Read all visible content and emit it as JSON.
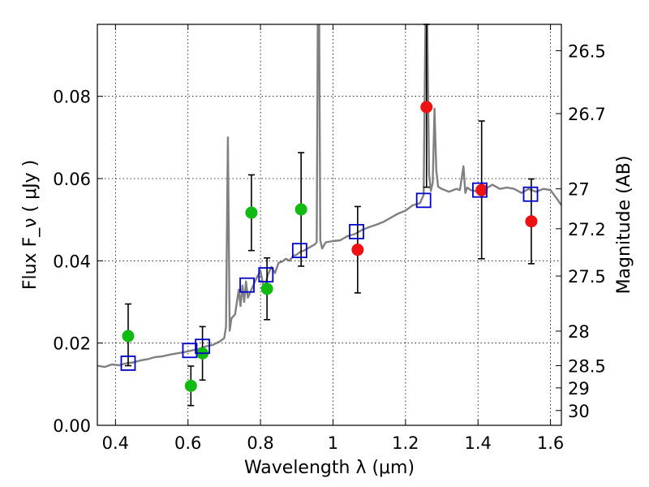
{
  "chart_data": {
    "type": "scatter",
    "xlabel": "Wavelength  λ (μm)",
    "ylabel": "Flux  F_ν  ( μJy )",
    "ylabel_right": "Magnitude (AB)",
    "xlim": [
      0.35,
      1.63
    ],
    "ylim": [
      0.0,
      0.0975
    ],
    "grid": true,
    "x_ticks": [
      0.4,
      0.6,
      0.8,
      1.0,
      1.2,
      1.4,
      1.6
    ],
    "x_tick_labels": [
      "0.4",
      "0.6",
      "0.8",
      "1",
      "1.2",
      "1.4",
      "1.6"
    ],
    "y_ticks": [
      0.0,
      0.02,
      0.04,
      0.06,
      0.08
    ],
    "y_tick_labels": [
      "0.00",
      "0.02",
      "0.04",
      "0.06",
      "0.08"
    ],
    "right_ticks": [
      {
        "label": "26.5",
        "flux": 0.0911
      },
      {
        "label": "26.7",
        "flux": 0.0758
      },
      {
        "label": "27",
        "flux": 0.0575
      },
      {
        "label": "27.2",
        "flux": 0.0478
      },
      {
        "label": "27.5",
        "flux": 0.0363
      },
      {
        "label": "28",
        "flux": 0.0229
      },
      {
        "label": "28.5",
        "flux": 0.0145
      },
      {
        "label": "29",
        "flux": 0.0091
      },
      {
        "label": "30",
        "flux": 0.0036
      }
    ],
    "model_spectrum": {
      "color": "#808080",
      "x": [
        0.35,
        0.37,
        0.39,
        0.41,
        0.43,
        0.45,
        0.47,
        0.49,
        0.51,
        0.53,
        0.55,
        0.57,
        0.59,
        0.61,
        0.63,
        0.65,
        0.67,
        0.69,
        0.7,
        0.705,
        0.71,
        0.715,
        0.72,
        0.73,
        0.74,
        0.745,
        0.75,
        0.755,
        0.76,
        0.765,
        0.77,
        0.78,
        0.79,
        0.8,
        0.81,
        0.82,
        0.83,
        0.84,
        0.85,
        0.86,
        0.87,
        0.88,
        0.89,
        0.9,
        0.91,
        0.92,
        0.93,
        0.94,
        0.95,
        0.955,
        0.958,
        0.962,
        0.965,
        0.97,
        0.98,
        1.0,
        1.02,
        1.04,
        1.06,
        1.08,
        1.1,
        1.12,
        1.14,
        1.16,
        1.18,
        1.2,
        1.22,
        1.24,
        1.25,
        1.255,
        1.26,
        1.265,
        1.27,
        1.275,
        1.28,
        1.285,
        1.29,
        1.3,
        1.32,
        1.34,
        1.35,
        1.36,
        1.365,
        1.37,
        1.38,
        1.4,
        1.42,
        1.44,
        1.46,
        1.48,
        1.5,
        1.52,
        1.54,
        1.56,
        1.58,
        1.6,
        1.62,
        1.63
      ],
      "y": [
        0.0145,
        0.0142,
        0.0148,
        0.0146,
        0.0151,
        0.0153,
        0.0158,
        0.0161,
        0.0166,
        0.0168,
        0.0172,
        0.0175,
        0.0178,
        0.0182,
        0.0186,
        0.0192,
        0.0196,
        0.0205,
        0.0212,
        0.024,
        0.07,
        0.023,
        0.026,
        0.027,
        0.033,
        0.029,
        0.034,
        0.03,
        0.035,
        0.031,
        0.032,
        0.034,
        0.036,
        0.0375,
        0.033,
        0.0365,
        0.0385,
        0.037,
        0.0395,
        0.0398,
        0.0405,
        0.04,
        0.0412,
        0.0415,
        0.0422,
        0.0425,
        0.043,
        0.0435,
        0.044,
        0.0445,
        0.0975,
        0.0975,
        0.045,
        0.043,
        0.0445,
        0.0448,
        0.045,
        0.046,
        0.0465,
        0.0475,
        0.0482,
        0.0488,
        0.0495,
        0.0505,
        0.0515,
        0.0522,
        0.0535,
        0.054,
        0.056,
        0.0975,
        0.0975,
        0.061,
        0.057,
        0.059,
        0.077,
        0.062,
        0.058,
        0.0575,
        0.0568,
        0.0575,
        0.0572,
        0.063,
        0.0565,
        0.0578,
        0.0572,
        0.0568,
        0.0575,
        0.0585,
        0.0575,
        0.0578,
        0.0575,
        0.0565,
        0.0575,
        0.0568,
        0.0575,
        0.0572,
        0.0548,
        0.0535
      ]
    },
    "model_points": {
      "marker": "open-square",
      "color": "#0000cc",
      "x": [
        0.435,
        0.605,
        0.64,
        0.763,
        0.815,
        0.908,
        1.065,
        1.25,
        1.405,
        1.545
      ],
      "y": [
        0.0151,
        0.0182,
        0.0192,
        0.0341,
        0.0366,
        0.0425,
        0.0471,
        0.0547,
        0.0572,
        0.0562
      ]
    },
    "observed_points": [
      {
        "x": 0.435,
        "y": 0.0217,
        "err_low": 0.0072,
        "err_high": 0.0078,
        "color": "#11bb11"
      },
      {
        "x": 0.608,
        "y": 0.0096,
        "err_low": 0.0048,
        "err_high": 0.0048,
        "color": "#11bb11"
      },
      {
        "x": 0.64,
        "y": 0.0175,
        "err_low": 0.0065,
        "err_high": 0.0065,
        "color": "#11bb11"
      },
      {
        "x": 0.775,
        "y": 0.0517,
        "err_low": 0.0092,
        "err_high": 0.0092,
        "color": "#11bb11"
      },
      {
        "x": 0.818,
        "y": 0.0332,
        "err_low": 0.0075,
        "err_high": 0.0075,
        "color": "#11bb11"
      },
      {
        "x": 0.912,
        "y": 0.0525,
        "err_low": 0.0138,
        "err_high": 0.0138,
        "color": "#11bb11"
      },
      {
        "x": 1.068,
        "y": 0.0427,
        "err_low": 0.0105,
        "err_high": 0.0105,
        "color": "#ee1111"
      },
      {
        "x": 1.258,
        "y": 0.0774,
        "err_low": 0.0195,
        "err_high": 0.0201,
        "color": "#ee1111"
      },
      {
        "x": 1.41,
        "y": 0.0572,
        "err_low": 0.0167,
        "err_high": 0.0168,
        "color": "#ee1111"
      },
      {
        "x": 1.547,
        "y": 0.0496,
        "err_low": 0.0103,
        "err_high": 0.0103,
        "color": "#ee1111"
      }
    ]
  }
}
